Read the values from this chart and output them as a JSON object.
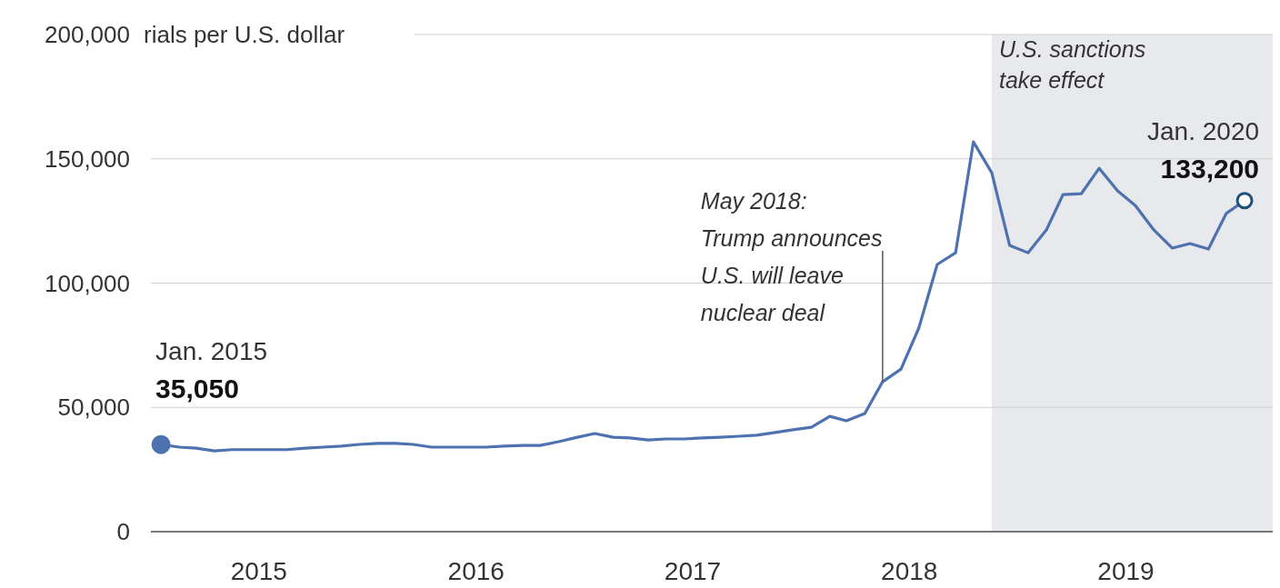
{
  "chart_data": {
    "type": "line",
    "ylabel": "rials per U.S. dollar",
    "x": [
      "2015-01",
      "2015-02",
      "2015-03",
      "2015-04",
      "2015-05",
      "2015-06",
      "2015-07",
      "2015-08",
      "2015-09",
      "2015-10",
      "2015-11",
      "2015-12",
      "2016-01",
      "2016-02",
      "2016-03",
      "2016-04",
      "2016-05",
      "2016-06",
      "2016-07",
      "2016-08",
      "2016-09",
      "2016-10",
      "2016-11",
      "2016-12",
      "2017-01",
      "2017-02",
      "2017-03",
      "2017-04",
      "2017-05",
      "2017-06",
      "2017-07",
      "2017-08",
      "2017-09",
      "2017-10",
      "2017-11",
      "2017-12",
      "2018-01",
      "2018-02",
      "2018-03",
      "2018-04",
      "2018-05",
      "2018-06",
      "2018-07",
      "2018-08",
      "2018-09",
      "2018-10",
      "2018-11",
      "2018-12",
      "2019-01",
      "2019-02",
      "2019-03",
      "2019-04",
      "2019-05",
      "2019-06",
      "2019-07",
      "2019-08",
      "2019-09",
      "2019-10",
      "2019-11",
      "2019-12",
      "2020-01"
    ],
    "series": [
      {
        "color": "#4e72b0",
        "values": [
          35050,
          34000,
          33600,
          32500,
          33000,
          33000,
          33000,
          33000,
          33600,
          34000,
          34400,
          35100,
          35500,
          35500,
          35100,
          34000,
          34000,
          34000,
          34000,
          34400,
          34700,
          34700,
          36200,
          37900,
          39500,
          38000,
          37700,
          36900,
          37300,
          37300,
          37700,
          38000,
          38400,
          38800,
          39900,
          41000,
          42000,
          46400,
          44600,
          47500,
          60300,
          65400,
          81900,
          107500,
          112200,
          156800,
          144400,
          115200,
          112200,
          121400,
          135600,
          136000,
          146200,
          137100,
          131200,
          121400,
          114100,
          115900,
          113700,
          128000,
          133200
        ]
      }
    ],
    "xlim": [
      "2014-12-15",
      "2020-02-22"
    ],
    "xticks": [
      {
        "value": "2015-06-15",
        "label": "2015"
      },
      {
        "value": "2016-06-15",
        "label": "2016"
      },
      {
        "value": "2017-06-15",
        "label": "2017"
      },
      {
        "value": "2018-06-15",
        "label": "2018"
      },
      {
        "value": "2019-06-15",
        "label": "2019"
      }
    ],
    "ylim": [
      0,
      200000
    ],
    "yticks": [
      0,
      {
        "value": 50000,
        "label": "50,000"
      },
      {
        "value": 100000,
        "label": "100,000"
      },
      {
        "value": 150000,
        "label": "150,000"
      },
      {
        "value": 200000,
        "label": "200,000"
      }
    ],
    "grid": "y",
    "marker": "none",
    "line_style": "solid",
    "bands": [
      {
        "axis": "x",
        "from": "2018-11-01",
        "to": "2020-02-22",
        "label": "U.S. sanctions\ntake effect",
        "color": "#e8e9ec"
      }
    ],
    "annotations": [
      {
        "text": "Jan. 2015\n35,050",
        "x": "2015-01",
        "y": 35050
      },
      {
        "text": "May 2018:\nTrump announces\nU.S. will leave\nnuclear deal",
        "x": "2018-05",
        "y": 60300
      },
      {
        "text": "Jan. 2020\n133,200",
        "x": "2020-01",
        "y": 133200
      }
    ]
  }
}
